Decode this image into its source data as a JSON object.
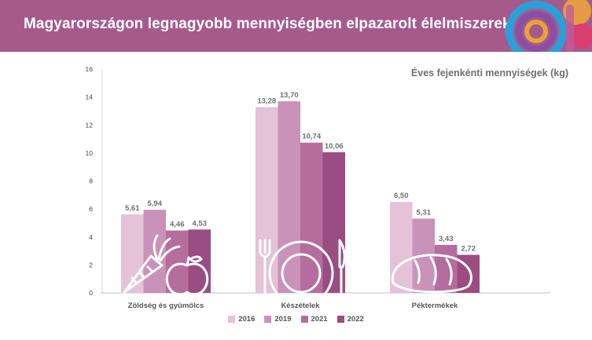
{
  "header": {
    "title": "Magyarországon legnagyobb mennyiségben elpazarolt élelmiszerek"
  },
  "colors": {
    "header_bg": "#a65a8c",
    "series": [
      "#e4c2d7",
      "#c992b8",
      "#b56d9d",
      "#9a4d82"
    ],
    "label_text": "#6f6f6f",
    "tick_text": "#444444",
    "icon_stroke": "#ffffff"
  },
  "icons": [
    "carrot-icon",
    "apple-icon",
    "fork-icon",
    "plate-icon",
    "knife-icon",
    "bread-icon"
  ],
  "chart_data": {
    "type": "bar",
    "subtitle": "Éves fejenkénti mennyiségek (kg)",
    "categories": [
      "Zöldség és gyümölcs",
      "Készételek",
      "Péktermékek"
    ],
    "series": [
      {
        "name": "2016",
        "values": [
          5.61,
          13.28,
          6.5
        ],
        "labels": [
          "5,61",
          "13,28",
          "6,50"
        ]
      },
      {
        "name": "2019",
        "values": [
          5.94,
          13.7,
          5.31
        ],
        "labels": [
          "5,94",
          "13,70",
          "5,31"
        ]
      },
      {
        "name": "2021",
        "values": [
          4.46,
          10.74,
          3.43
        ],
        "labels": [
          "4,46",
          "10,74",
          "3,43"
        ]
      },
      {
        "name": "2022",
        "values": [
          4.53,
          10.06,
          2.72
        ],
        "labels": [
          "4,53",
          "10,06",
          "2,72"
        ]
      }
    ],
    "ylim": [
      0,
      16
    ],
    "yticks": [
      0,
      2,
      4,
      6,
      8,
      10,
      12,
      14,
      16
    ],
    "grid": false,
    "legend_position": "bottom"
  }
}
